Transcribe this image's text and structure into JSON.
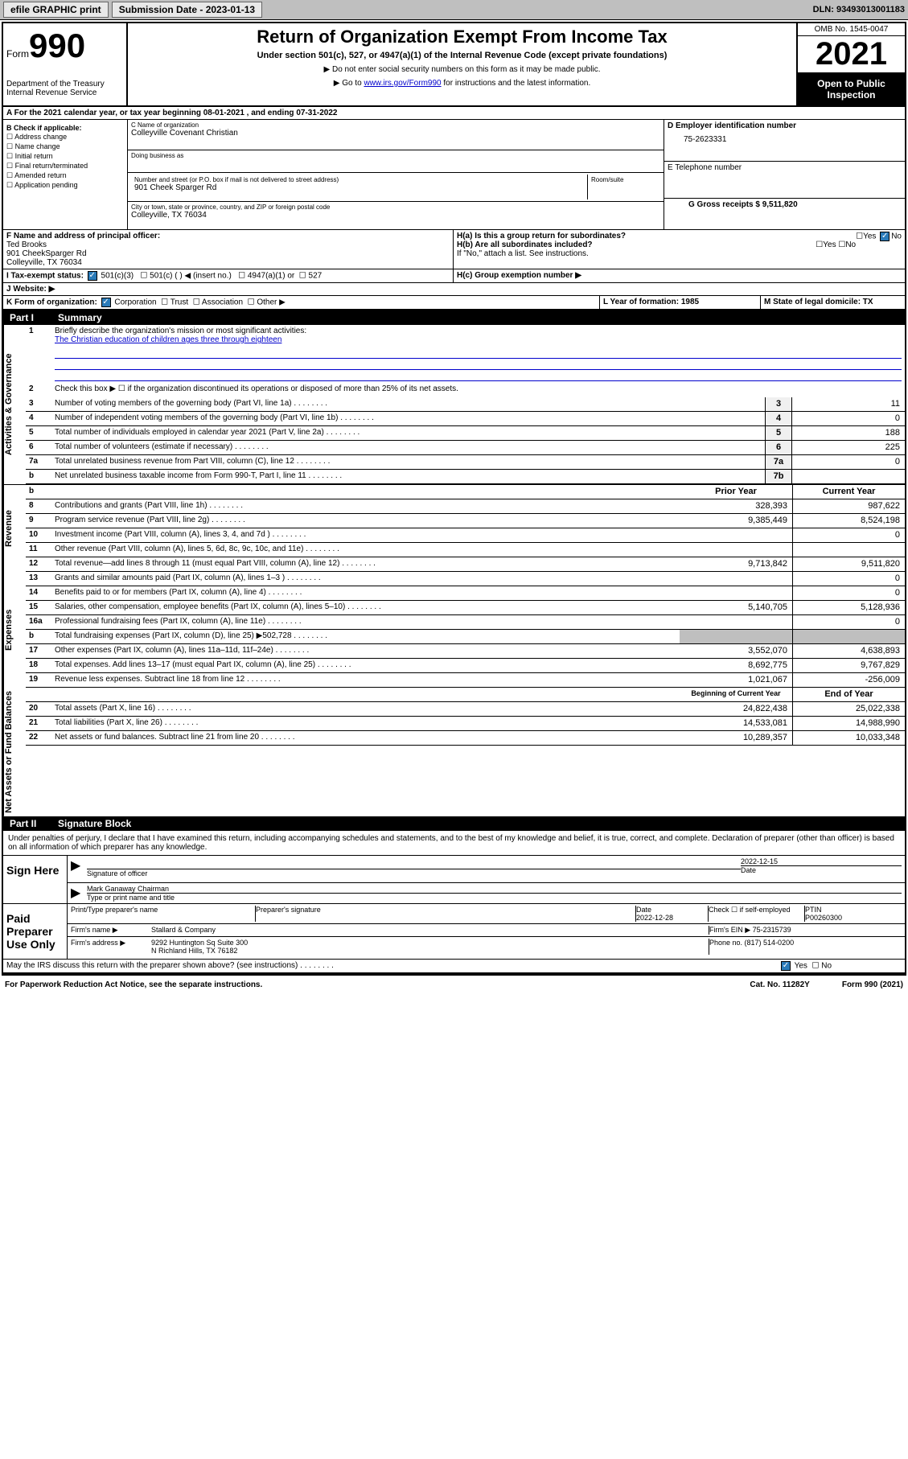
{
  "topbar": {
    "efile": "efile GRAPHIC print",
    "submission_label": "Submission Date - 2023-01-13",
    "dln": "DLN: 93493013001183"
  },
  "header": {
    "form_prefix": "Form",
    "form_num": "990",
    "dept1": "Department of the Treasury",
    "dept2": "Internal Revenue Service",
    "title": "Return of Organization Exempt From Income Tax",
    "sub": "Under section 501(c), 527, or 4947(a)(1) of the Internal Revenue Code (except private foundations)",
    "note1": "▶ Do not enter social security numbers on this form as it may be made public.",
    "note2_pre": "▶ Go to ",
    "note2_link": "www.irs.gov/Form990",
    "note2_post": " for instructions and the latest information.",
    "omb": "OMB No. 1545-0047",
    "year": "2021",
    "open": "Open to Public Inspection"
  },
  "line_a": {
    "text": "A For the 2021 calendar year, or tax year beginning 08-01-2021   , and ending 07-31-2022"
  },
  "box_b": {
    "hd": "B Check if applicable:",
    "opts": [
      "☐ Address change",
      "☐ Name change",
      "☐ Initial return",
      "☐ Final return/terminated",
      "☐ Amended return",
      "☐ Application pending"
    ]
  },
  "box_c": {
    "name_lbl": "C Name of organization",
    "name": "Colleyville Covenant Christian",
    "dba_lbl": "Doing business as",
    "street_lbl": "Number and street (or P.O. box if mail is not delivered to street address)",
    "room_lbl": "Room/suite",
    "street": "901 Cheek Sparger Rd",
    "city_lbl": "City or town, state or province, country, and ZIP or foreign postal code",
    "city": "Colleyville, TX  76034"
  },
  "box_d": {
    "lbl": "D Employer identification number",
    "val": "75-2623331"
  },
  "box_e": {
    "lbl": "E Telephone number",
    "val": ""
  },
  "box_g": {
    "lbl": "G Gross receipts $ 9,511,820"
  },
  "box_f": {
    "lbl": "F  Name and address of principal officer:",
    "name": "Ted Brooks",
    "addr1": "901 CheekSparger Rd",
    "addr2": "Colleyville, TX  76034"
  },
  "box_h": {
    "ha": "H(a)  Is this a group return for subordinates?",
    "hb": "H(b)  Are all subordinates included?",
    "hb_note": "If \"No,\" attach a list. See instructions.",
    "hc": "H(c)  Group exemption number ▶",
    "yes": "Yes",
    "no": "No"
  },
  "box_i": {
    "lbl": "I   Tax-exempt status:",
    "c3": "501(c)(3)",
    "c": "501(c) (  ) ◀ (insert no.)",
    "a1": "4947(a)(1) or",
    "s527": "527"
  },
  "box_j": {
    "lbl": "J   Website: ▶"
  },
  "box_k": {
    "lbl": "K Form of organization:",
    "corp": "Corporation",
    "trust": "Trust",
    "assoc": "Association",
    "other": "Other ▶"
  },
  "box_l": {
    "lbl": "L Year of formation: 1985"
  },
  "box_m": {
    "lbl": "M State of legal domicile: TX"
  },
  "part1": {
    "num": "Part I",
    "title": "Summary"
  },
  "summary": {
    "l1_lbl": "Briefly describe the organization's mission or most significant activities:",
    "l1_txt": "The Christian education of children ages three through eighteen",
    "l2": "Check this box ▶ ☐  if the organization discontinued its operations or disposed of more than 25% of its net assets.",
    "rows_gov": [
      {
        "n": "3",
        "t": "Number of voting members of the governing body (Part VI, line 1a)",
        "rn": "3",
        "v": "11"
      },
      {
        "n": "4",
        "t": "Number of independent voting members of the governing body (Part VI, line 1b)",
        "rn": "4",
        "v": "0"
      },
      {
        "n": "5",
        "t": "Total number of individuals employed in calendar year 2021 (Part V, line 2a)",
        "rn": "5",
        "v": "188"
      },
      {
        "n": "6",
        "t": "Total number of volunteers (estimate if necessary)",
        "rn": "6",
        "v": "225"
      },
      {
        "n": "7a",
        "t": "Total unrelated business revenue from Part VIII, column (C), line 12",
        "rn": "7a",
        "v": "0"
      },
      {
        "n": "b",
        "t": "Net unrelated business taxable income from Form 990-T, Part I, line 11",
        "rn": "7b",
        "v": ""
      }
    ],
    "hdr_prior": "Prior Year",
    "hdr_curr": "Current Year",
    "rows_rev": [
      {
        "n": "8",
        "t": "Contributions and grants (Part VIII, line 1h)",
        "p": "328,393",
        "c": "987,622"
      },
      {
        "n": "9",
        "t": "Program service revenue (Part VIII, line 2g)",
        "p": "9,385,449",
        "c": "8,524,198"
      },
      {
        "n": "10",
        "t": "Investment income (Part VIII, column (A), lines 3, 4, and 7d )",
        "p": "",
        "c": "0"
      },
      {
        "n": "11",
        "t": "Other revenue (Part VIII, column (A), lines 5, 6d, 8c, 9c, 10c, and 11e)",
        "p": "",
        "c": ""
      },
      {
        "n": "12",
        "t": "Total revenue—add lines 8 through 11 (must equal Part VIII, column (A), line 12)",
        "p": "9,713,842",
        "c": "9,511,820"
      }
    ],
    "rows_exp": [
      {
        "n": "13",
        "t": "Grants and similar amounts paid (Part IX, column (A), lines 1–3 )",
        "p": "",
        "c": "0"
      },
      {
        "n": "14",
        "t": "Benefits paid to or for members (Part IX, column (A), line 4)",
        "p": "",
        "c": "0"
      },
      {
        "n": "15",
        "t": "Salaries, other compensation, employee benefits (Part IX, column (A), lines 5–10)",
        "p": "5,140,705",
        "c": "5,128,936"
      },
      {
        "n": "16a",
        "t": "Professional fundraising fees (Part IX, column (A), line 11e)",
        "p": "",
        "c": "0"
      },
      {
        "n": "b",
        "t": "Total fundraising expenses (Part IX, column (D), line 25) ▶502,728",
        "p": "shade",
        "c": "shade"
      },
      {
        "n": "17",
        "t": "Other expenses (Part IX, column (A), lines 11a–11d, 11f–24e)",
        "p": "3,552,070",
        "c": "4,638,893"
      },
      {
        "n": "18",
        "t": "Total expenses. Add lines 13–17 (must equal Part IX, column (A), line 25)",
        "p": "8,692,775",
        "c": "9,767,829"
      },
      {
        "n": "19",
        "t": "Revenue less expenses. Subtract line 18 from line 12",
        "p": "1,021,067",
        "c": "-256,009"
      }
    ],
    "hdr_beg": "Beginning of Current Year",
    "hdr_end": "End of Year",
    "rows_net": [
      {
        "n": "20",
        "t": "Total assets (Part X, line 16)",
        "p": "24,822,438",
        "c": "25,022,338"
      },
      {
        "n": "21",
        "t": "Total liabilities (Part X, line 26)",
        "p": "14,533,081",
        "c": "14,988,990"
      },
      {
        "n": "22",
        "t": "Net assets or fund balances. Subtract line 21 from line 20",
        "p": "10,289,357",
        "c": "10,033,348"
      }
    ]
  },
  "side_labels": {
    "gov": "Activities & Governance",
    "rev": "Revenue",
    "exp": "Expenses",
    "net": "Net Assets or Fund Balances"
  },
  "part2": {
    "num": "Part II",
    "title": "Signature Block"
  },
  "sig": {
    "penalty": "Under penalties of perjury, I declare that I have examined this return, including accompanying schedules and statements, and to the best of my knowledge and belief, it is true, correct, and complete. Declaration of preparer (other than officer) is based on all information of which preparer has any knowledge.",
    "sign_here": "Sign Here",
    "sig_officer": "Signature of officer",
    "date1": "2022-12-15",
    "date_lbl": "Date",
    "officer_name": "Mark Ganaway  Chairman",
    "type_name": "Type or print name and title",
    "paid": "Paid Preparer Use Only",
    "prep_name_lbl": "Print/Type preparer's name",
    "prep_sig_lbl": "Preparer's signature",
    "date2": "2022-12-28",
    "check_self": "Check ☐ if self-employed",
    "ptin_lbl": "PTIN",
    "ptin": "P00260300",
    "firm_name_lbl": "Firm's name   ▶",
    "firm_name": "Stallard & Company",
    "firm_ein_lbl": "Firm's EIN ▶ 75-2315739",
    "firm_addr_lbl": "Firm's address ▶",
    "firm_addr1": "9292 Huntington Sq Suite 300",
    "firm_addr2": "N Richland Hills, TX  76182",
    "phone_lbl": "Phone no. (817) 514-0200",
    "may_irs": "May the IRS discuss this return with the preparer shown above? (see instructions)"
  },
  "footer": {
    "pra": "For Paperwork Reduction Act Notice, see the separate instructions.",
    "cat": "Cat. No. 11282Y",
    "form": "Form 990 (2021)"
  }
}
